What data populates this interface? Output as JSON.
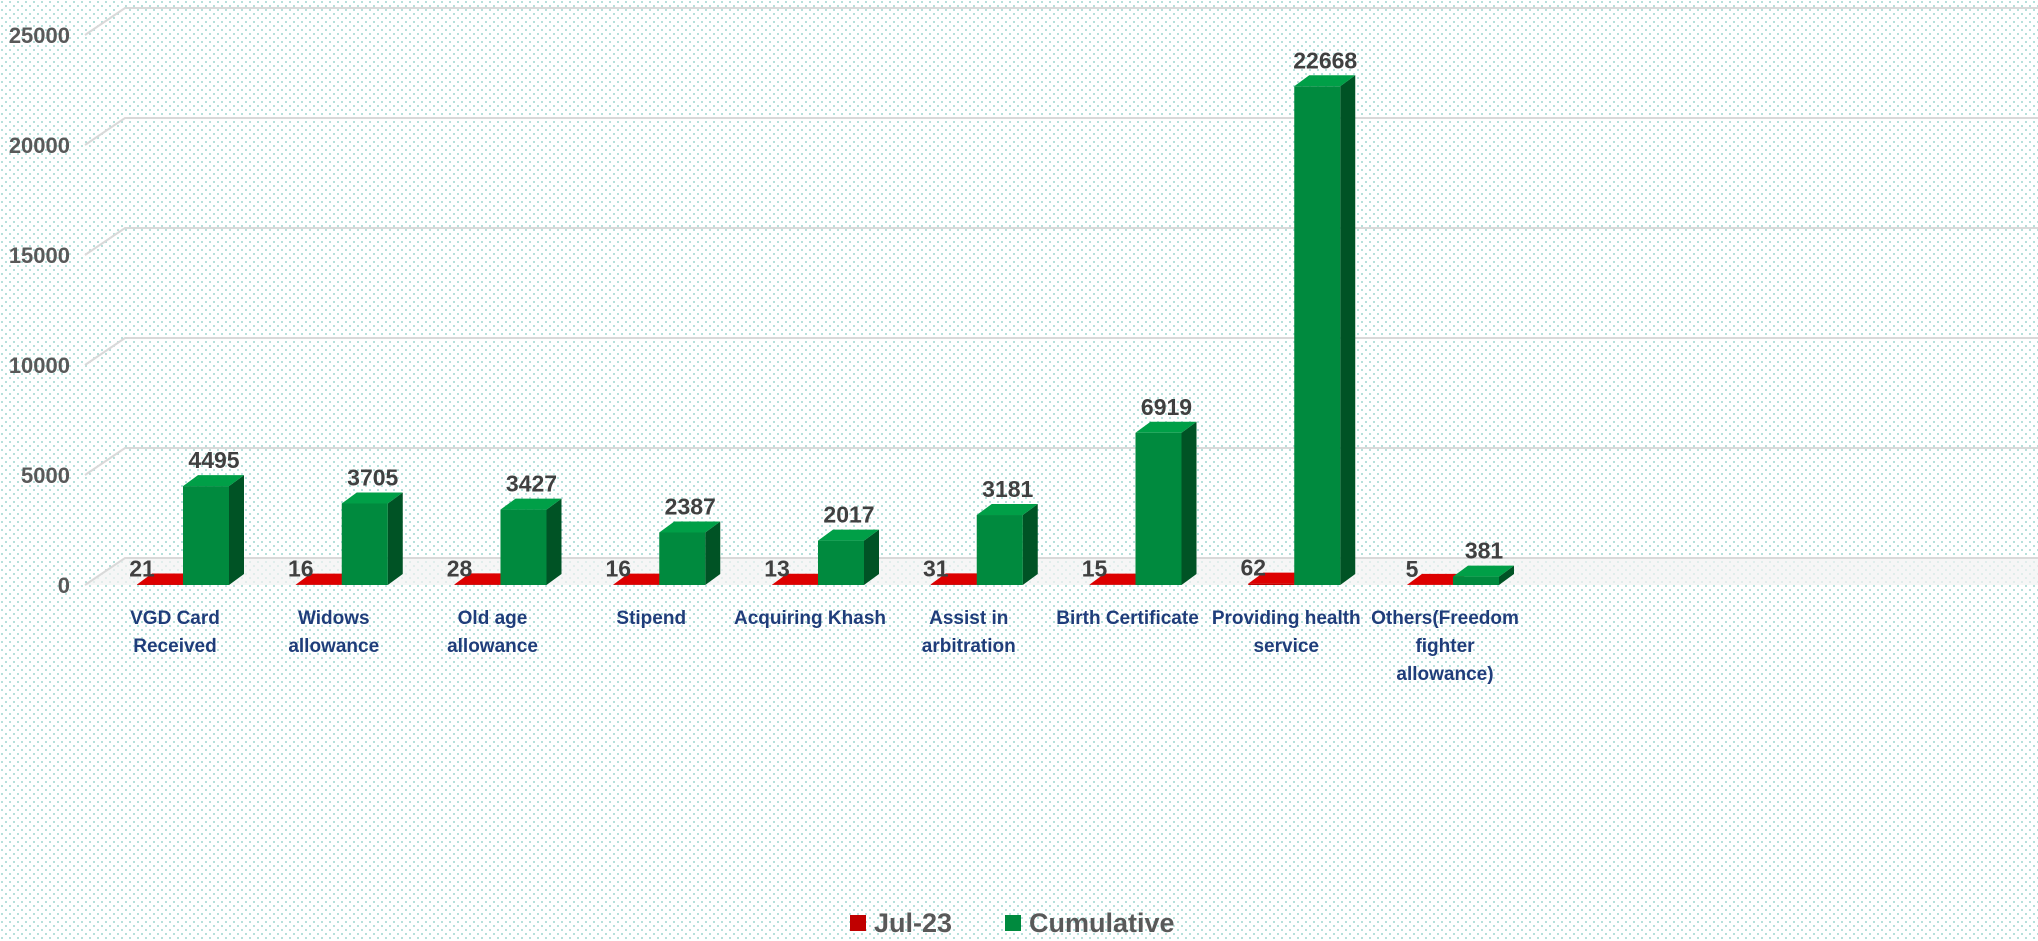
{
  "chart_data": {
    "type": "bar3d",
    "categories": [
      "VGD Card Received",
      "Widows allowance",
      "Old age allowance",
      "Stipend",
      "Acquiring Khash",
      "Assist in arbitration",
      "Birth Certificate",
      "Providing health service",
      "Others(Freedom fighter allowance)"
    ],
    "series": [
      {
        "name": "Jul-23",
        "color": "#c00000",
        "values": [
          21,
          16,
          28,
          16,
          13,
          31,
          15,
          62,
          5
        ]
      },
      {
        "name": "Cumulative",
        "color": "#008a3e",
        "values": [
          4495,
          3705,
          3427,
          2387,
          2017,
          3181,
          6919,
          22668,
          381
        ]
      }
    ],
    "ylim": [
      0,
      25000
    ],
    "yticks": [
      0,
      5000,
      10000,
      15000,
      20000,
      25000
    ],
    "grid": true,
    "legend": "bottom"
  }
}
